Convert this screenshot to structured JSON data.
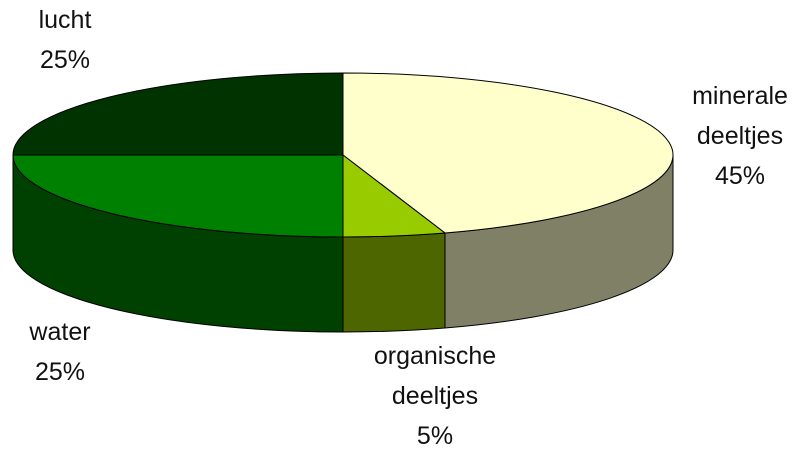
{
  "chart_data": {
    "type": "pie",
    "categories": [
      "minerale deeltjes",
      "organische deeltjes",
      "water",
      "lucht"
    ],
    "values": [
      45,
      5,
      25,
      25
    ],
    "value_labels": [
      "45%",
      "5%",
      "25%",
      "25%"
    ],
    "colors": [
      "#ffffcc",
      "#99cc00",
      "#008000",
      "#003300"
    ]
  }
}
